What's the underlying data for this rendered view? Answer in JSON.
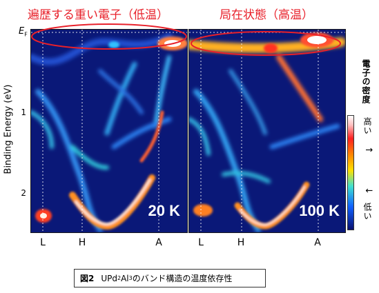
{
  "figure": {
    "left_title": "遍歴する重い電子（低温）",
    "right_title": "局在状態（高温）",
    "y_axis_label": "Binding Energy (eV)",
    "y_ticks": [
      "1",
      "2"
    ],
    "ef_label_main": "E",
    "ef_label_sub": "F",
    "x_ticks": [
      "L",
      "H",
      "A"
    ],
    "left_temperature": "20 K",
    "right_temperature": "100 K",
    "colorbar_title": "電子の密度",
    "colorbar_high": "高い",
    "colorbar_low": "低い",
    "colorbar_arrow": "↑ ↓"
  },
  "caption": {
    "label": "図2",
    "prefix": "UPd",
    "sub1": "2",
    "mid": "Al",
    "sub2": "3",
    "suffix": "のバンド構造の温度依存性"
  },
  "colors": {
    "accent_red": "#e8202a",
    "map_background": "#0a1878",
    "hot": "#ffffff",
    "warm": "#ff3020",
    "cool": "#4ac8ff"
  }
}
